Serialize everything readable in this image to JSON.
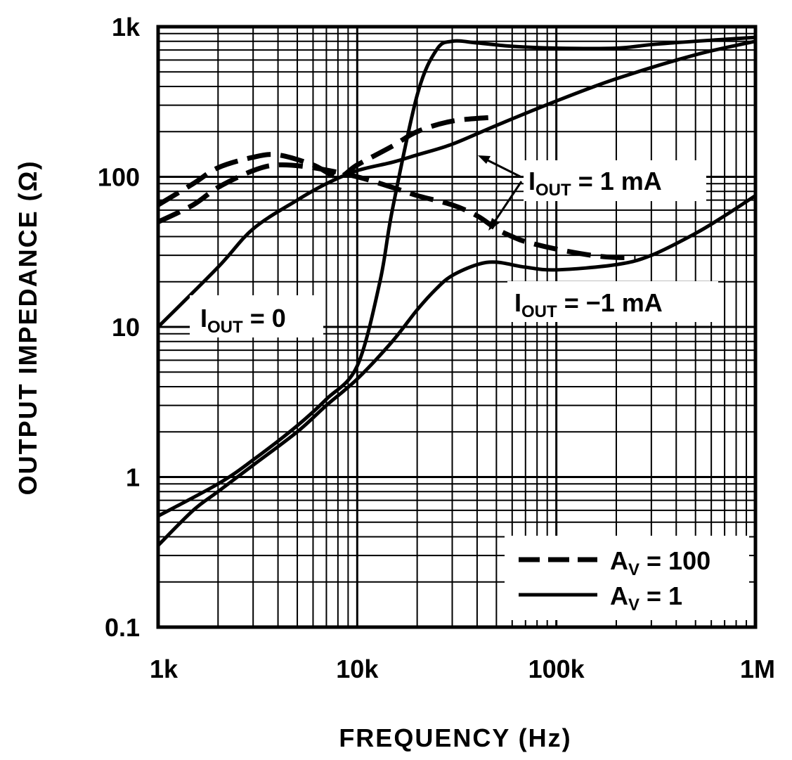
{
  "chart_data": {
    "type": "line",
    "title": "",
    "xlabel": "FREQUENCY (Hz)",
    "ylabel": "OUTPUT IMPEDANCE (Ω)",
    "xscale": "log",
    "yscale": "log",
    "xlim": [
      1000,
      1000000
    ],
    "ylim": [
      0.1,
      1000
    ],
    "grid": true,
    "x_tick_labels": [
      "1k",
      "10k",
      "100k",
      "1M"
    ],
    "x_tick_values": [
      1000,
      10000,
      100000,
      1000000
    ],
    "y_tick_labels": [
      "0.1",
      "1",
      "10",
      "100",
      "1k"
    ],
    "y_tick_values": [
      0.1,
      1,
      10,
      100,
      1000
    ],
    "legend": {
      "placement": "bottom-right",
      "entries": [
        {
          "style": "dashed",
          "prefix": "A",
          "sub": "V",
          "suffix": " = 100"
        },
        {
          "style": "solid",
          "prefix": "A",
          "sub": "V",
          "suffix": " = 1"
        }
      ]
    },
    "annotations": {
      "iout_0": {
        "main": "I",
        "sub": "OUT",
        "rest": " = 0"
      },
      "iout_1ma": {
        "main": "I",
        "sub": "OUT",
        "rest": " = 1 mA"
      },
      "iout_neg1ma": {
        "main": "I",
        "sub": "OUT",
        "rest": " = −1 mA"
      }
    },
    "series": [
      {
        "style": "dashed",
        "condition": "A_V = 100, I_OUT = 1 mA",
        "x": [
          1000,
          1500,
          2000,
          3000,
          4000,
          6000,
          8000,
          10000,
          15000,
          20000,
          30000,
          50000
        ],
        "y": [
          65,
          90,
          115,
          135,
          140,
          120,
          100,
          120,
          160,
          200,
          235,
          250
        ]
      },
      {
        "style": "dashed",
        "condition": "A_V = 100, I_OUT = -1 mA",
        "x": [
          1000,
          1500,
          2000,
          3000,
          4000,
          6000,
          10000,
          15000,
          20000,
          30000,
          40000,
          50000,
          60000,
          70000,
          100000,
          150000,
          200000,
          250000
        ],
        "y": [
          50,
          65,
          85,
          110,
          120,
          115,
          100,
          85,
          75,
          65,
          55,
          45,
          40,
          37,
          33,
          30,
          29,
          29
        ]
      },
      {
        "style": "solid",
        "condition": "A_V = 1, I_OUT = 0",
        "x": [
          1000,
          2000,
          3000,
          5000,
          7000,
          10000,
          15000,
          20000,
          30000,
          50000,
          100000,
          200000,
          500000,
          1000000
        ],
        "y": [
          10,
          25,
          45,
          70,
          90,
          110,
          125,
          140,
          165,
          220,
          320,
          450,
          650,
          800
        ]
      },
      {
        "style": "solid",
        "condition": "A_V = 1, I_OUT = 1 mA",
        "x": [
          1000,
          2000,
          3000,
          5000,
          7000,
          10000,
          13000,
          15000,
          20000,
          25000,
          30000,
          40000,
          60000,
          100000,
          200000,
          300000,
          500000,
          1000000
        ],
        "y": [
          0.55,
          0.9,
          1.3,
          2.2,
          3.3,
          5.5,
          20,
          60,
          350,
          700,
          800,
          780,
          740,
          720,
          720,
          760,
          800,
          850
        ]
      },
      {
        "style": "solid",
        "condition": "A_V = 1, I_OUT = -1 mA",
        "x": [
          1000,
          1500,
          2000,
          3000,
          5000,
          7000,
          10000,
          15000,
          20000,
          25000,
          30000,
          40000,
          50000,
          70000,
          100000,
          200000,
          300000,
          500000,
          700000,
          1000000
        ],
        "y": [
          0.35,
          0.6,
          0.8,
          1.2,
          2.0,
          3.0,
          4.5,
          8,
          13,
          18,
          22,
          26,
          27,
          25,
          24,
          26,
          30,
          42,
          55,
          75
        ]
      }
    ]
  }
}
